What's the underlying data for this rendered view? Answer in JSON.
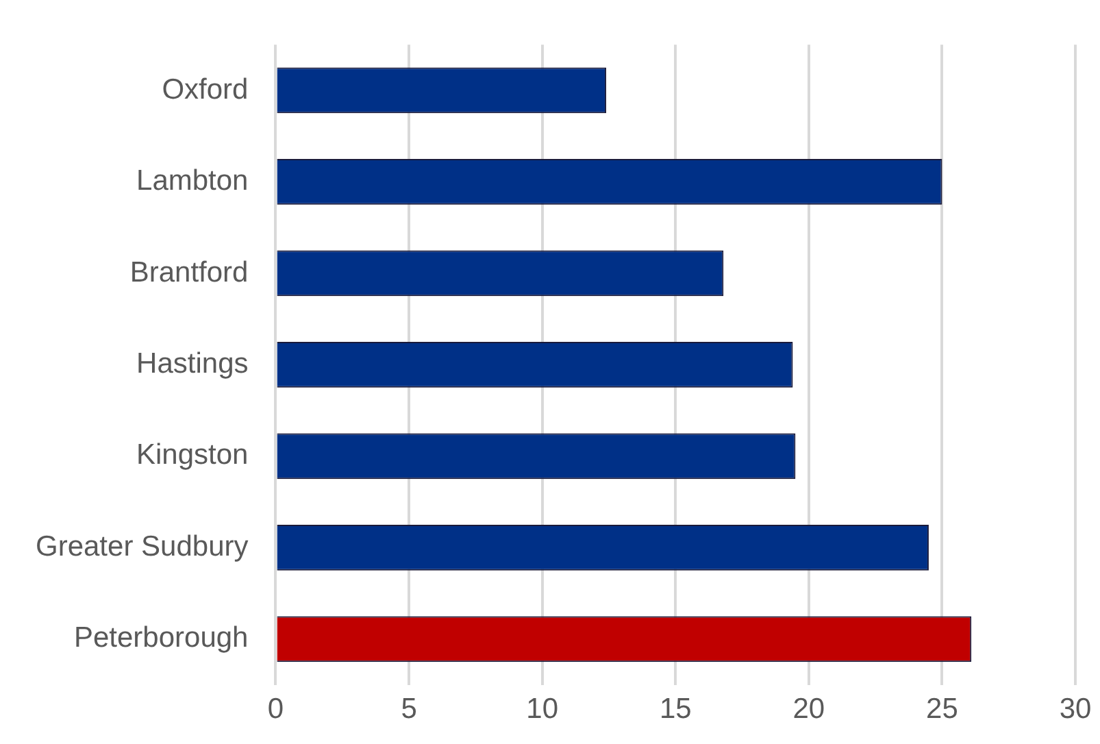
{
  "chart_data": {
    "type": "bar",
    "orientation": "horizontal",
    "categories": [
      "Oxford",
      "Lambton",
      "Brantford",
      "Hastings",
      "Kingston",
      "Greater Sudbury",
      "Peterborough"
    ],
    "values": [
      12.4,
      25.0,
      16.8,
      19.4,
      19.5,
      24.5,
      26.1
    ],
    "colors": [
      "#003087",
      "#003087",
      "#003087",
      "#003087",
      "#003087",
      "#003087",
      "#c00000"
    ],
    "xlim": [
      0,
      30
    ],
    "xticks": [
      0,
      5,
      10,
      15,
      20,
      25,
      30
    ],
    "grid": "x",
    "legend": false
  }
}
